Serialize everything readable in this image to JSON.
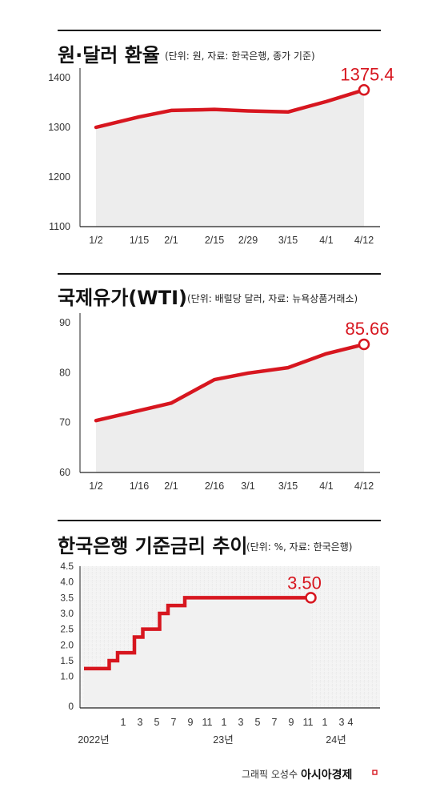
{
  "chart_data": [
    {
      "type": "line",
      "title": "원·달러 환율",
      "subtitle": "(단위: 원, 자료: 한국은행, 종가 기준)",
      "categories": [
        "1/2",
        "1/15",
        "2/1",
        "2/15",
        "2/29",
        "3/15",
        "4/1",
        "4/12"
      ],
      "values": [
        1300,
        1321,
        1334,
        1336,
        1333,
        1331,
        1352,
        1375.4
      ],
      "yticks": [
        1100,
        1200,
        1300,
        1400
      ],
      "ylim": [
        1100,
        1400
      ],
      "end_label": "1375.4",
      "grid": false,
      "colors": {
        "line": "#d7161f",
        "fill": "#ededed"
      }
    },
    {
      "type": "line",
      "title": "국제유가(WTI)",
      "subtitle": "(단위: 배럴당 달러, 자료: 뉴욕상품거래소)",
      "categories": [
        "1/2",
        "1/16",
        "2/1",
        "2/16",
        "3/1",
        "3/15",
        "4/1",
        "4/12"
      ],
      "values": [
        70.4,
        72.4,
        73.9,
        78.6,
        79.9,
        81.0,
        83.8,
        85.66
      ],
      "yticks": [
        60,
        70,
        80,
        90
      ],
      "ylim": [
        60,
        90
      ],
      "end_label": "85.66",
      "grid": false,
      "colors": {
        "line": "#d7161f",
        "fill": "#ededed"
      }
    },
    {
      "type": "line",
      "title": "한국은행 기준금리 추이",
      "subtitle": "(단위: %, 자료: 한국은행)",
      "x_tick_labels": [
        "1",
        "3",
        "5",
        "7",
        "9",
        "11",
        "1",
        "3",
        "5",
        "7",
        "9",
        "11",
        "1",
        "3",
        "4"
      ],
      "x_group_labels": [
        "2022년",
        "23년",
        "24년"
      ],
      "steps": [
        {
          "date": "2022-01",
          "value": 1.25
        },
        {
          "date": "2022-04",
          "value": 1.5
        },
        {
          "date": "2022-05",
          "value": 1.75
        },
        {
          "date": "2022-07",
          "value": 2.25
        },
        {
          "date": "2022-08",
          "value": 2.5
        },
        {
          "date": "2022-10",
          "value": 3.0
        },
        {
          "date": "2022-11",
          "value": 3.25
        },
        {
          "date": "2023-01",
          "value": 3.5
        },
        {
          "date": "2024-04",
          "value": 3.5
        }
      ],
      "yticks": [
        "0",
        "1.0",
        "1.5",
        "2.0",
        "2.5",
        "3.0",
        "3.5",
        "4.0",
        "4.5"
      ],
      "ylim": [
        0,
        4.5
      ],
      "end_label": "3.50",
      "grid": true,
      "colors": {
        "line": "#d7161f",
        "fill": "#f1f1f1"
      }
    }
  ],
  "footer": {
    "credit": "그래픽 오성수",
    "brand": "아시아경제"
  }
}
